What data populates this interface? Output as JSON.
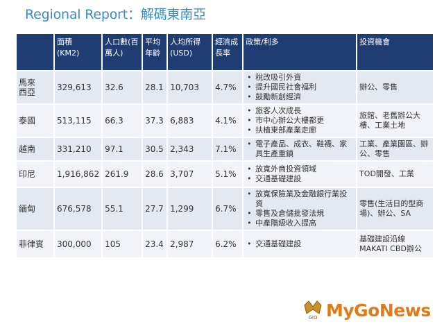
{
  "title": "Regional Report：解碼東南亞",
  "table": {
    "headers": [
      "",
      "面積\n(KM2)",
      "人口數(百\n萬人)",
      "平均\n年齡",
      "人均所得\n(USD)",
      "經濟成\n長率",
      "政策/利多",
      "投資機會"
    ],
    "rows": [
      {
        "country": "馬來\n西亞",
        "area": "329,613",
        "population": "32.6",
        "age": "28.1",
        "income": "10,703",
        "growth": "4.7%",
        "policies": [
          "稅改吸引外資",
          "提升國民社會福利",
          "鼓勵新創經濟"
        ],
        "opportunity": "辦公、零售"
      },
      {
        "country": "泰國",
        "area": "513,115",
        "population": "66.3",
        "age": "37.3",
        "income": "6,883",
        "growth": "4.1%",
        "policies": [
          "旅客人次成長",
          "市中心辦公大樓都更",
          "扶植東部產業走廊"
        ],
        "opportunity": "旅館、老舊辦公大樓、工業土地"
      },
      {
        "country": "越南",
        "area": "331,210",
        "population": "97.1",
        "age": "30.5",
        "income": "2,343",
        "growth": "7.1%",
        "policies": [],
        "policy_text": "電子產品、成衣、鞋襪、家具生產重鎮",
        "opportunity": "工業、產業園區、辦公、零售"
      },
      {
        "country": "印尼",
        "area": "1,916,862",
        "population": "261.9",
        "age": "28.6",
        "income": "3,707",
        "growth": "5.1%",
        "policies": [
          "放寬外商投資領域",
          "交通基礎建設"
        ],
        "opportunity": "TOD開發、工業"
      },
      {
        "country": "緬甸",
        "area": "676,578",
        "population": "55.1",
        "age": "27.7",
        "income": "1,299",
        "growth": "6.7%",
        "policies": [
          "放寬保險業及金融銀行業投資",
          "零售及倉儲批發法規",
          "中產階級收入提高"
        ],
        "opportunity": "零售(生活日的型商場)、辦公、SA"
      },
      {
        "country": "菲律賓",
        "area": "300,000",
        "population": "105",
        "age": "23.4",
        "income": "2,987",
        "growth": "6.2%",
        "policies": [
          "交通基礎建設"
        ],
        "opportunity": "基礎建設沿線MAKATI CBD辦公"
      }
    ]
  },
  "logo": {
    "text": "MyGoNews",
    "mark_text": "GIO",
    "color": "#e07b1a"
  }
}
